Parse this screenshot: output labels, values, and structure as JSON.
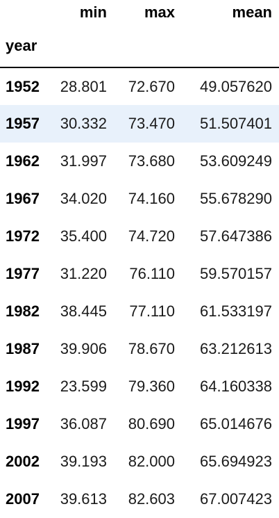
{
  "table": {
    "index_name": "year",
    "columns": [
      "min",
      "max",
      "mean"
    ],
    "rows": [
      {
        "year": "1952",
        "min": "28.801",
        "max": "72.670",
        "mean": "49.057620"
      },
      {
        "year": "1957",
        "min": "30.332",
        "max": "73.470",
        "mean": "51.507401"
      },
      {
        "year": "1962",
        "min": "31.997",
        "max": "73.680",
        "mean": "53.609249"
      },
      {
        "year": "1967",
        "min": "34.020",
        "max": "74.160",
        "mean": "55.678290"
      },
      {
        "year": "1972",
        "min": "35.400",
        "max": "74.720",
        "mean": "57.647386"
      },
      {
        "year": "1977",
        "min": "31.220",
        "max": "76.110",
        "mean": "59.570157"
      },
      {
        "year": "1982",
        "min": "38.445",
        "max": "77.110",
        "mean": "61.533197"
      },
      {
        "year": "1987",
        "min": "39.906",
        "max": "78.670",
        "mean": "63.212613"
      },
      {
        "year": "1992",
        "min": "23.599",
        "max": "79.360",
        "mean": "64.160338"
      },
      {
        "year": "1997",
        "min": "36.087",
        "max": "80.690",
        "mean": "65.014676"
      },
      {
        "year": "2002",
        "min": "39.193",
        "max": "82.000",
        "mean": "65.694923"
      },
      {
        "year": "2007",
        "min": "39.613",
        "max": "82.603",
        "mean": "67.007423"
      }
    ]
  },
  "colors": {
    "hover_row_background": "#e8f1fb",
    "header_rule": "#000000"
  }
}
